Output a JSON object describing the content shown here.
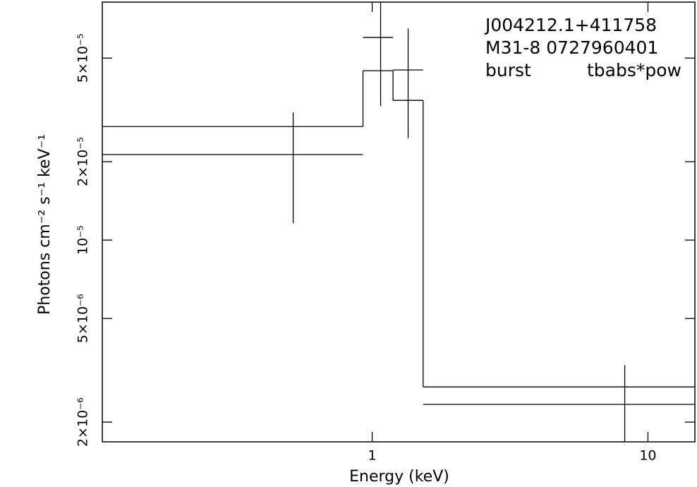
{
  "chart_data": {
    "type": "spectrum",
    "xlabel": "Energy (keV)",
    "ylabel": "Photons cm⁻² s⁻¹ keV⁻¹",
    "annotations": [
      "J004212.1+411758",
      "M31-8 0727960401",
      "burst",
      "tbabs*pow"
    ],
    "xlog": true,
    "ylog": true,
    "xlim": [
      0.105,
      14.8
    ],
    "ylim": [
      1.68e-06,
      8.2e-05
    ],
    "xticks": [
      1,
      10
    ],
    "yticks": [
      {
        "value": 2e-06,
        "label": "2×10⁻⁶"
      },
      {
        "value": 5e-06,
        "label": "5×10⁻⁶"
      },
      {
        "value": 1e-05,
        "label": "10⁻⁵"
      },
      {
        "value": 2e-05,
        "label": "2×10⁻⁵"
      },
      {
        "value": 5e-05,
        "label": "5×10⁻⁵"
      }
    ],
    "data": {
      "x": [
        0.517,
        1.073,
        1.35,
        8.24
      ],
      "x_low": [
        0.105,
        0.926,
        1.19,
        1.53
      ],
      "x_high": [
        0.926,
        1.19,
        1.53,
        14.8
      ],
      "values": [
        2.13e-05,
        6e-05,
        4.5e-05,
        2.34e-06
      ],
      "y_low": [
        1.16e-05,
        3.27e-05,
        2.46e-05,
        1.68e-06
      ],
      "y_high": [
        3.09e-05,
        8.2e-05,
        6.5e-05,
        3.31e-06
      ]
    },
    "model": {
      "values": [
        2.73e-05,
        4.47e-05,
        3.44e-05,
        2.73e-06
      ]
    }
  }
}
